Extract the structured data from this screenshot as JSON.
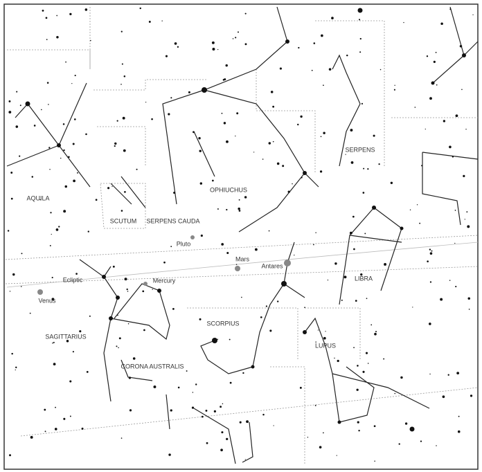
{
  "map": {
    "labels": [
      {
        "text": "AQUILA"
      },
      {
        "text": "SCUTUM"
      },
      {
        "text": "SERPENS CAUDA"
      },
      {
        "text": "OPHIUCHUS"
      },
      {
        "text": "SERPENS"
      },
      {
        "text": "LIBRA"
      },
      {
        "text": "SCORPIUS"
      },
      {
        "text": "LUPUS"
      },
      {
        "text": "SAGITTARIUS"
      },
      {
        "text": "CORONA AUSTRALIS"
      },
      {
        "text": "Venus"
      },
      {
        "text": "Mars"
      },
      {
        "text": "Antares"
      },
      {
        "text": "Pluto"
      },
      {
        "text": "Mercury"
      },
      {
        "text": "Ecliptic"
      }
    ]
  }
}
